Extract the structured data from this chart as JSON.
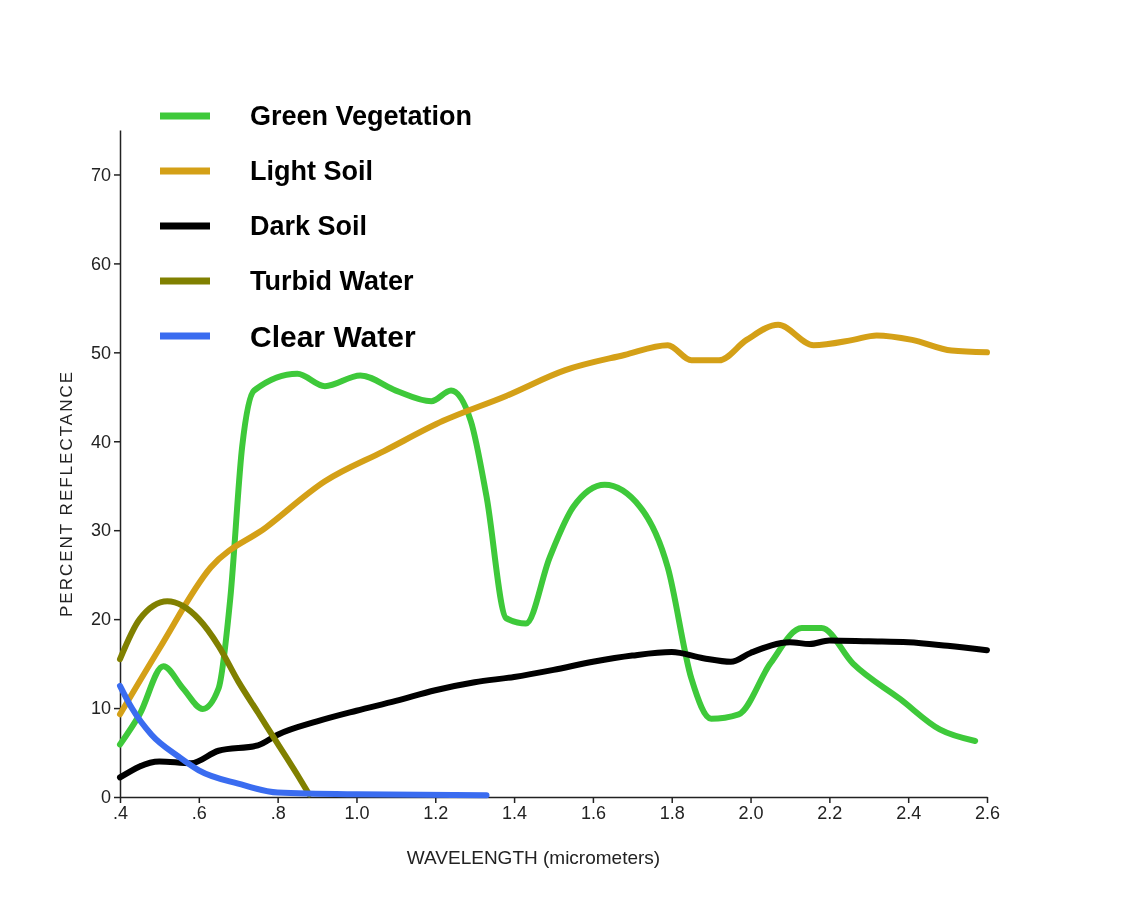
{
  "chart_data": {
    "type": "line",
    "xlabel": "WAVELENGTH (micrometers)",
    "ylabel": "PERCENT REFLECTANCE",
    "xlim": [
      0.4,
      2.6
    ],
    "ylim": [
      0,
      75
    ],
    "xticks": [
      {
        "value": 0.4,
        "label": ".4"
      },
      {
        "value": 0.6,
        "label": ".6"
      },
      {
        "value": 0.8,
        "label": ".8"
      },
      {
        "value": 1.0,
        "label": "1.0"
      },
      {
        "value": 1.2,
        "label": "1.2"
      },
      {
        "value": 1.4,
        "label": "1.4"
      },
      {
        "value": 1.6,
        "label": "1.6"
      },
      {
        "value": 1.8,
        "label": "1.8"
      },
      {
        "value": 2.0,
        "label": "2.0"
      },
      {
        "value": 2.2,
        "label": "2.2"
      },
      {
        "value": 2.4,
        "label": "2.4"
      },
      {
        "value": 2.6,
        "label": "2.6"
      }
    ],
    "yticks": [
      0,
      10,
      20,
      30,
      40,
      50,
      60,
      70
    ],
    "legend": "top left",
    "grid": false,
    "marker": "none",
    "line_style": "solid",
    "series": [
      {
        "name": "Green Vegetation",
        "color": "#3ec93a",
        "x": [
          0.4,
          0.45,
          0.51,
          0.56,
          0.61,
          0.65,
          0.68,
          0.71,
          0.74,
          0.85,
          0.92,
          1.01,
          1.1,
          1.19,
          1.24,
          1.29,
          1.33,
          1.38,
          1.43,
          1.49,
          1.55,
          1.63,
          1.72,
          1.79,
          1.85,
          1.9,
          1.97,
          2.05,
          2.13,
          2.18,
          2.26,
          2.38,
          2.48,
          2.57
        ],
        "values": [
          5.9,
          9.3,
          14.7,
          12.2,
          9.9,
          12.2,
          22.4,
          39.4,
          45.7,
          47.6,
          46.2,
          47.4,
          45.7,
          44.5,
          45.7,
          42.3,
          33.8,
          20.1,
          19.5,
          26.9,
          32.6,
          35.1,
          32.6,
          25.8,
          13.3,
          8.8,
          9.3,
          15,
          19,
          19,
          15,
          11,
          7.6,
          6.3
        ]
      },
      {
        "name": "Light Soil",
        "color": "#d4a017",
        "x": [
          0.4,
          0.5,
          0.63,
          0.77,
          0.92,
          1.07,
          1.22,
          1.38,
          1.53,
          1.68,
          1.79,
          1.85,
          1.92,
          1.99,
          2.07,
          2.16,
          2.26,
          2.32,
          2.41,
          2.51,
          2.6
        ],
        "values": [
          9.3,
          16.7,
          25.8,
          30.3,
          35.5,
          38.9,
          42.3,
          45.1,
          48,
          49.7,
          50.8,
          49.1,
          49.1,
          51.4,
          53.1,
          50.8,
          51.4,
          51.9,
          51.4,
          50.2,
          50
        ]
      },
      {
        "name": "Dark Soil",
        "color": "#000000",
        "x": [
          0.4,
          0.5,
          0.58,
          0.65,
          0.75,
          0.8,
          0.9,
          1.0,
          1.1,
          1.2,
          1.3,
          1.4,
          1.5,
          1.6,
          1.7,
          1.8,
          1.88,
          1.95,
          2.0,
          2.1,
          2.15,
          2.2,
          2.3,
          2.4,
          2.5,
          2.6
        ],
        "values": [
          2.2,
          4,
          3.8,
          5.2,
          5.8,
          7,
          8.5,
          9.7,
          10.8,
          12,
          12.9,
          13.5,
          14.3,
          15.2,
          15.9,
          16.3,
          15.6,
          15.2,
          16.2,
          17.4,
          17.2,
          17.6,
          17.5,
          17.4,
          17,
          16.5
        ]
      },
      {
        "name": "Turbid  Water",
        "color": "#808000",
        "x": [
          0.4,
          0.45,
          0.52,
          0.6,
          0.65,
          0.7,
          0.75,
          0.8,
          0.85,
          0.88
        ],
        "values": [
          15.5,
          20,
          22,
          20,
          17,
          13,
          9.5,
          6,
          2.5,
          0.3
        ]
      },
      {
        "name": "Clear Water",
        "color": "#3a6cf0",
        "x": [
          0.4,
          0.43,
          0.48,
          0.55,
          0.6,
          0.7,
          0.8,
          1.0,
          1.33
        ],
        "values": [
          12.5,
          10,
          7,
          4.5,
          3,
          1.5,
          0.5,
          0.3,
          0.2
        ]
      }
    ]
  }
}
